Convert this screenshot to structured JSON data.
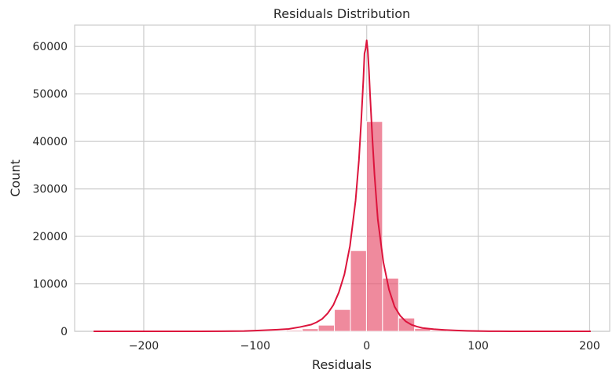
{
  "chart_data": {
    "type": "bar",
    "subtype": "histogram-with-kde",
    "title": "Residuals Distribution",
    "xlabel": "Residuals",
    "ylabel": "Count",
    "xlim": [
      -262,
      218
    ],
    "ylim": [
      0,
      64500
    ],
    "xticks": [
      -200,
      -100,
      0,
      100,
      200
    ],
    "xtick_labels": [
      "−200",
      "−100",
      "0",
      "100",
      "200"
    ],
    "yticks": [
      0,
      10000,
      20000,
      30000,
      40000,
      50000,
      60000
    ],
    "ytick_labels": [
      "0",
      "10000",
      "20000",
      "30000",
      "40000",
      "50000",
      "60000"
    ],
    "grid": true,
    "bar_color": "#e8536f",
    "kde_color": "#dc143c",
    "bins": {
      "edges": [
        -245,
        -230.6,
        -216.2,
        -201.8,
        -187.4,
        -173,
        -158.6,
        -144.2,
        -129.8,
        -115.4,
        -101,
        -86.6,
        -72.2,
        -57.8,
        -43.4,
        -29,
        -14.6,
        -0.2,
        14.2,
        28.6,
        43,
        57.4,
        71.8,
        86.2,
        100.6,
        115,
        129.4,
        143.8,
        158.2,
        172.6,
        187,
        201.4
      ],
      "counts": [
        0,
        0,
        0,
        0,
        0,
        0,
        0,
        0,
        0,
        10,
        40,
        120,
        250,
        550,
        1300,
        4600,
        17000,
        44200,
        11200,
        2800,
        600,
        250,
        100,
        40,
        15,
        5,
        0,
        0,
        0,
        0,
        0
      ]
    },
    "kde": {
      "x": [
        -245,
        -160,
        -130,
        -110,
        -100,
        -90,
        -80,
        -70,
        -60,
        -50,
        -45,
        -40,
        -35,
        -30,
        -25,
        -20,
        -15,
        -10,
        -7,
        -5,
        -3,
        -2,
        -1,
        0,
        1,
        2,
        3,
        5,
        7,
        10,
        15,
        20,
        25,
        30,
        35,
        40,
        45,
        50,
        60,
        70,
        80,
        90,
        100,
        110,
        130,
        160,
        201
      ],
      "y": [
        0,
        0,
        20,
        60,
        150,
        250,
        350,
        500,
        900,
        1400,
        1900,
        2600,
        3800,
        5500,
        8200,
        12000,
        18000,
        27500,
        36000,
        44000,
        53000,
        58500,
        59500,
        61300,
        59000,
        55000,
        50000,
        41000,
        33000,
        23500,
        14500,
        8800,
        5200,
        3300,
        2100,
        1400,
        1000,
        700,
        450,
        300,
        180,
        100,
        60,
        30,
        10,
        0,
        0
      ]
    }
  }
}
